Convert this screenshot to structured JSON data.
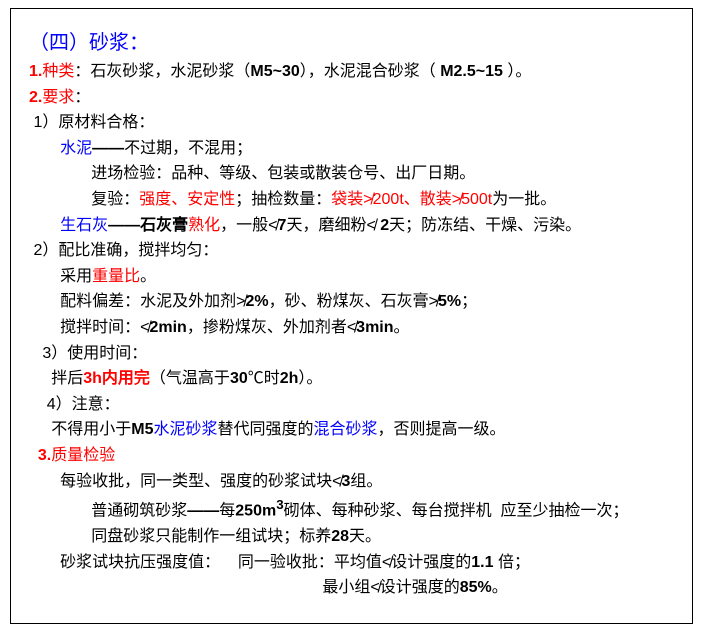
{
  "t": "（四）砂浆：",
  "s1n": "1.",
  "s1l": "种类",
  "s1t": "：石灰砂浆，水泥砂浆（",
  "s1m": "M5~30",
  "s1t2": "），水泥混合砂浆（ ",
  "s1m2": "M2.5~15",
  "s1t3": " ）。",
  "s2n": "2.",
  "s2l": "要求",
  "s2c": "：",
  "r1": " 1）原材料合格：",
  "r1a": "       ",
  "r1w": "水泥",
  "r1dash": "——",
  "r1t": "不过期，不混用；",
  "r1b": "              进场检验：品种、等级、包装或散装仓号、出厂日期。",
  "r1c1": "              复验：",
  "r1c2": "强度、安定性",
  "r1c3": "；抽检数量：",
  "r1c4": "袋装≯200t、散装≯500t",
  "r1c5": "为一批。",
  "r1d1": "       ",
  "r1d2": "生石灰",
  "r1d3": "——石灰膏",
  "r1d4": "熟化",
  "r1d5": "，一般≮",
  "r1d6": "7",
  "r1d7": "天，磨细粉≮ ",
  "r1d8": "2",
  "r1d9": "天；防冻结、干燥、污染。",
  "r2": " 2）配比准确，搅拌均匀：",
  "r2a1": "       采用",
  "r2a2": "重量比",
  "r2a3": "。",
  "r2b1": "       配料偏差：水泥及外加剂≯",
  "r2b2": "2%",
  "r2b3": "，砂、粉煤灰、石灰膏≯",
  "r2b4": "5%",
  "r2b5": "；",
  "r2c1": "       搅拌时间：≮",
  "r2c2": "2min",
  "r2c3": "，掺粉煤灰、外加剂者≮",
  "r2c4": "3min",
  "r2c5": "。",
  "r3": "   3）使用时间：",
  "r3a1": "     拌后",
  "r3a2": "3h内用完",
  "r3a3": "（气温高于",
  "r3a4": "30",
  "r3a5": "℃时",
  "r3a6": "2h",
  "r3a7": "）。",
  "r4": "    4）注意：",
  "r4a1": "     不得用小于",
  "r4a2": "M5",
  "r4a3": "水泥砂浆",
  "r4a4": "替代同强度的",
  "r4a5": "混合砂浆",
  "r4a6": "，否则提高一级。",
  "s3n": "  3.",
  "s3l": "质量检验",
  "q1": "       每验收批，同一类型、强度的砂浆试块≮",
  "q1b": "3",
  "q1c": "组。",
  "q2a": "              普通砌筑砂浆",
  "q2dash": "——",
  "q2b": "每",
  "q2c": "250m",
  "q2d": "砌体、每种砂浆、每台搅拌机  应至少抽检一次；",
  "q3": "              同盘砂浆只能制作一组试块；标养",
  "q3b": "28",
  "q3c": "天。",
  "q4": "       砂浆试块抗压强度值：    同一验收批：平均值≮设计强度的",
  "q4b": "1.1 ",
  "q4c": "倍；",
  "q5": "                                                                  最小组≮设计强度的",
  "q5b": "85%",
  "q5c": "。"
}
